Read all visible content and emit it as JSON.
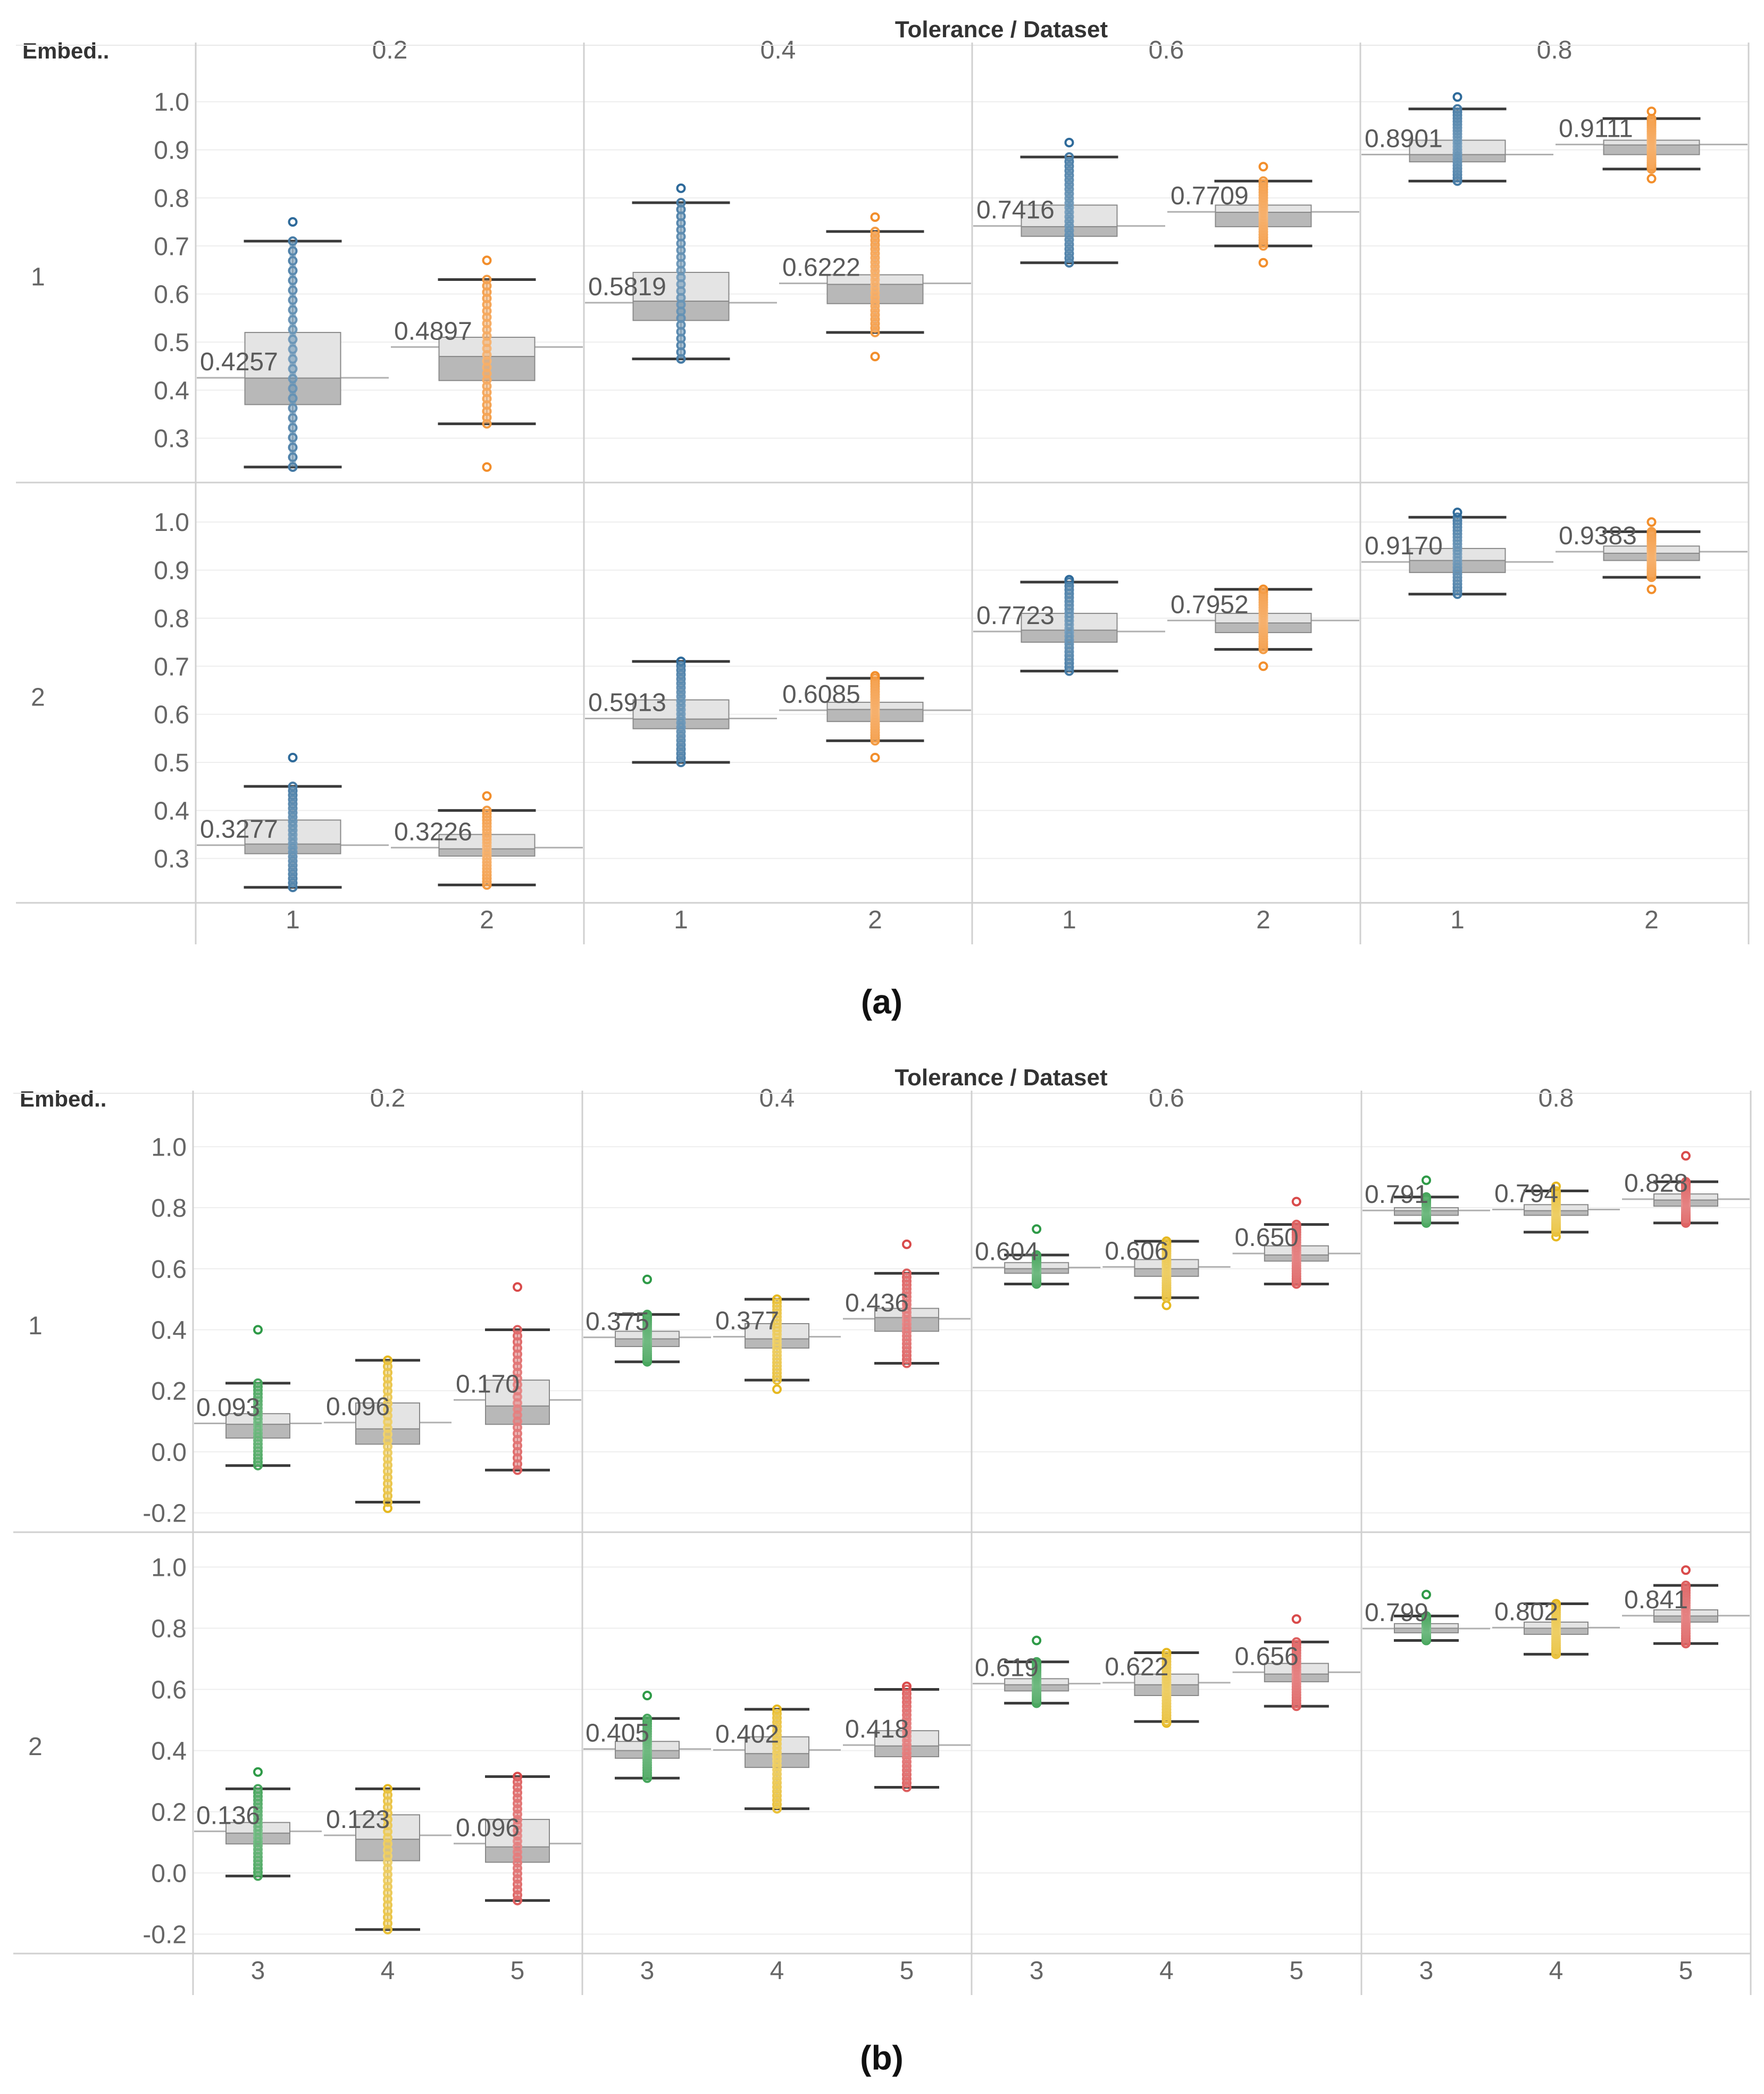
{
  "charts": [
    {
      "id": "a",
      "caption": "(a)",
      "header": "Tolerance / Dataset",
      "row_header": "Embed..",
      "tolerances": [
        "0.2",
        "0.4",
        "0.6",
        "0.8"
      ],
      "embeds": [
        "1",
        "2"
      ],
      "datasets": [
        "1",
        "2"
      ],
      "y_ticks": [
        "1.0",
        "0.9",
        "0.8",
        "0.7",
        "0.6",
        "0.5",
        "0.4",
        "0.3"
      ]
    },
    {
      "id": "b",
      "caption": "(b)",
      "header": "Tolerance / Dataset",
      "row_header": "Embed..",
      "tolerances": [
        "0.2",
        "0.4",
        "0.6",
        "0.8"
      ],
      "embeds": [
        "1",
        "2"
      ],
      "datasets": [
        "3",
        "4",
        "5"
      ],
      "y_ticks": [
        "1.0",
        "0.8",
        "0.6",
        "0.4",
        "0.2",
        "0.0",
        "-0.2"
      ]
    }
  ],
  "chart_data": [
    {
      "type": "box",
      "title": "(a)",
      "xlabel": "Tolerance / Dataset",
      "ylabel": "Embed..",
      "ylim": [
        0.21,
        1.07
      ],
      "y_ticks": [
        1.0,
        0.9,
        0.8,
        0.7,
        0.6,
        0.5,
        0.4,
        0.3
      ],
      "series_colors": {
        "1": "#2e6a9a",
        "2": "#f28e2b"
      },
      "panels": [
        {
          "tolerance": "0.2",
          "embed": "1",
          "boxes": [
            {
              "dataset": "1",
              "avg_label": "0.4257",
              "mean": 0.4257,
              "median": 0.425,
              "q1": 0.37,
              "q3": 0.52,
              "whisker_low": 0.24,
              "whisker_high": 0.71,
              "min": 0.24,
              "max": 0.75
            },
            {
              "dataset": "2",
              "avg_label": "0.4897",
              "mean": 0.4897,
              "median": 0.47,
              "q1": 0.42,
              "q3": 0.51,
              "whisker_low": 0.33,
              "whisker_high": 0.63,
              "min": 0.24,
              "max": 0.67
            }
          ]
        },
        {
          "tolerance": "0.4",
          "embed": "1",
          "boxes": [
            {
              "dataset": "1",
              "avg_label": "0.5819",
              "mean": 0.5819,
              "median": 0.585,
              "q1": 0.545,
              "q3": 0.645,
              "whisker_low": 0.465,
              "whisker_high": 0.79,
              "min": 0.465,
              "max": 0.82
            },
            {
              "dataset": "2",
              "avg_label": "0.6222",
              "mean": 0.6222,
              "median": 0.62,
              "q1": 0.58,
              "q3": 0.64,
              "whisker_low": 0.52,
              "whisker_high": 0.73,
              "min": 0.47,
              "max": 0.76
            }
          ]
        },
        {
          "tolerance": "0.6",
          "embed": "1",
          "boxes": [
            {
              "dataset": "1",
              "avg_label": "0.7416",
              "mean": 0.7416,
              "median": 0.74,
              "q1": 0.72,
              "q3": 0.785,
              "whisker_low": 0.665,
              "whisker_high": 0.885,
              "min": 0.665,
              "max": 0.915
            },
            {
              "dataset": "2",
              "avg_label": "0.7709",
              "mean": 0.7709,
              "median": 0.77,
              "q1": 0.74,
              "q3": 0.785,
              "whisker_low": 0.7,
              "whisker_high": 0.835,
              "min": 0.665,
              "max": 0.865
            }
          ]
        },
        {
          "tolerance": "0.8",
          "embed": "1",
          "boxes": [
            {
              "dataset": "1",
              "avg_label": "0.8901",
              "mean": 0.8901,
              "median": 0.89,
              "q1": 0.875,
              "q3": 0.92,
              "whisker_low": 0.835,
              "whisker_high": 0.985,
              "min": 0.835,
              "max": 1.01
            },
            {
              "dataset": "2",
              "avg_label": "0.9111",
              "mean": 0.9111,
              "median": 0.91,
              "q1": 0.89,
              "q3": 0.92,
              "whisker_low": 0.86,
              "whisker_high": 0.965,
              "min": 0.84,
              "max": 0.98
            }
          ]
        },
        {
          "tolerance": "0.2",
          "embed": "2",
          "boxes": [
            {
              "dataset": "1",
              "avg_label": "0.3277",
              "mean": 0.3277,
              "median": 0.33,
              "q1": 0.31,
              "q3": 0.38,
              "whisker_low": 0.24,
              "whisker_high": 0.45,
              "min": 0.24,
              "max": 0.51
            },
            {
              "dataset": "2",
              "avg_label": "0.3226",
              "mean": 0.3226,
              "median": 0.32,
              "q1": 0.305,
              "q3": 0.35,
              "whisker_low": 0.245,
              "whisker_high": 0.4,
              "min": 0.245,
              "max": 0.43
            }
          ]
        },
        {
          "tolerance": "0.4",
          "embed": "2",
          "boxes": [
            {
              "dataset": "1",
              "avg_label": "0.5913",
              "mean": 0.5913,
              "median": 0.59,
              "q1": 0.57,
              "q3": 0.63,
              "whisker_low": 0.5,
              "whisker_high": 0.71,
              "min": 0.5,
              "max": 0.71
            },
            {
              "dataset": "2",
              "avg_label": "0.6085",
              "mean": 0.6085,
              "median": 0.61,
              "q1": 0.585,
              "q3": 0.625,
              "whisker_low": 0.545,
              "whisker_high": 0.675,
              "min": 0.51,
              "max": 0.68
            }
          ]
        },
        {
          "tolerance": "0.6",
          "embed": "2",
          "boxes": [
            {
              "dataset": "1",
              "avg_label": "0.7723",
              "mean": 0.7723,
              "median": 0.775,
              "q1": 0.75,
              "q3": 0.81,
              "whisker_low": 0.69,
              "whisker_high": 0.875,
              "min": 0.69,
              "max": 0.88
            },
            {
              "dataset": "2",
              "avg_label": "0.7952",
              "mean": 0.7952,
              "median": 0.79,
              "q1": 0.77,
              "q3": 0.81,
              "whisker_low": 0.735,
              "whisker_high": 0.86,
              "min": 0.7,
              "max": 0.86
            }
          ]
        },
        {
          "tolerance": "0.8",
          "embed": "2",
          "boxes": [
            {
              "dataset": "1",
              "avg_label": "0.9170",
              "mean": 0.917,
              "median": 0.92,
              "q1": 0.895,
              "q3": 0.945,
              "whisker_low": 0.85,
              "whisker_high": 1.01,
              "min": 0.85,
              "max": 1.02
            },
            {
              "dataset": "2",
              "avg_label": "0.9383",
              "mean": 0.9383,
              "median": 0.935,
              "q1": 0.92,
              "q3": 0.95,
              "whisker_low": 0.885,
              "whisker_high": 0.98,
              "min": 0.86,
              "max": 1.0
            }
          ]
        }
      ]
    },
    {
      "type": "box",
      "title": "(b)",
      "xlabel": "Tolerance / Dataset",
      "ylabel": "Embed..",
      "ylim": [
        -0.26,
        1.1
      ],
      "y_ticks": [
        1.0,
        0.8,
        0.6,
        0.4,
        0.2,
        0.0,
        -0.2
      ],
      "series_colors": {
        "3": "#2e9a47",
        "4": "#e6b820",
        "5": "#d94b4b"
      },
      "panels": [
        {
          "tolerance": "0.2",
          "embed": "1",
          "boxes": [
            {
              "dataset": "3",
              "avg_label": "0.093",
              "mean": 0.093,
              "median": 0.09,
              "q1": 0.045,
              "q3": 0.125,
              "whisker_low": -0.045,
              "whisker_high": 0.225,
              "min": -0.045,
              "max": 0.4
            },
            {
              "dataset": "4",
              "avg_label": "0.096",
              "mean": 0.096,
              "median": 0.075,
              "q1": 0.025,
              "q3": 0.16,
              "whisker_low": -0.165,
              "whisker_high": 0.3,
              "min": -0.185,
              "max": 0.3
            },
            {
              "dataset": "5",
              "avg_label": "0.170",
              "mean": 0.17,
              "median": 0.15,
              "q1": 0.09,
              "q3": 0.235,
              "whisker_low": -0.06,
              "whisker_high": 0.4,
              "min": -0.06,
              "max": 0.54
            }
          ]
        },
        {
          "tolerance": "0.4",
          "embed": "1",
          "boxes": [
            {
              "dataset": "3",
              "avg_label": "0.375",
              "mean": 0.375,
              "median": 0.37,
              "q1": 0.345,
              "q3": 0.395,
              "whisker_low": 0.295,
              "whisker_high": 0.45,
              "min": 0.295,
              "max": 0.565
            },
            {
              "dataset": "4",
              "avg_label": "0.377",
              "mean": 0.377,
              "median": 0.37,
              "q1": 0.34,
              "q3": 0.42,
              "whisker_low": 0.235,
              "whisker_high": 0.5,
              "min": 0.205,
              "max": 0.5
            },
            {
              "dataset": "5",
              "avg_label": "0.436",
              "mean": 0.436,
              "median": 0.44,
              "q1": 0.395,
              "q3": 0.47,
              "whisker_low": 0.29,
              "whisker_high": 0.585,
              "min": 0.29,
              "max": 0.68
            }
          ]
        },
        {
          "tolerance": "0.6",
          "embed": "1",
          "boxes": [
            {
              "dataset": "3",
              "avg_label": "0.604",
              "mean": 0.604,
              "median": 0.6,
              "q1": 0.585,
              "q3": 0.62,
              "whisker_low": 0.55,
              "whisker_high": 0.645,
              "min": 0.55,
              "max": 0.73
            },
            {
              "dataset": "4",
              "avg_label": "0.606",
              "mean": 0.606,
              "median": 0.6,
              "q1": 0.575,
              "q3": 0.63,
              "whisker_low": 0.505,
              "whisker_high": 0.69,
              "min": 0.48,
              "max": 0.69
            },
            {
              "dataset": "5",
              "avg_label": "0.650",
              "mean": 0.65,
              "median": 0.645,
              "q1": 0.625,
              "q3": 0.675,
              "whisker_low": 0.55,
              "whisker_high": 0.745,
              "min": 0.55,
              "max": 0.82
            }
          ]
        },
        {
          "tolerance": "0.8",
          "embed": "1",
          "boxes": [
            {
              "dataset": "3",
              "avg_label": "0.791",
              "mean": 0.791,
              "median": 0.79,
              "q1": 0.775,
              "q3": 0.8,
              "whisker_low": 0.75,
              "whisker_high": 0.835,
              "min": 0.75,
              "max": 0.89
            },
            {
              "dataset": "4",
              "avg_label": "0.794",
              "mean": 0.794,
              "median": 0.79,
              "q1": 0.775,
              "q3": 0.81,
              "whisker_low": 0.72,
              "whisker_high": 0.855,
              "min": 0.705,
              "max": 0.87
            },
            {
              "dataset": "5",
              "avg_label": "0.828",
              "mean": 0.828,
              "median": 0.825,
              "q1": 0.805,
              "q3": 0.845,
              "whisker_low": 0.75,
              "whisker_high": 0.885,
              "min": 0.75,
              "max": 0.97
            }
          ]
        },
        {
          "tolerance": "0.2",
          "embed": "2",
          "boxes": [
            {
              "dataset": "3",
              "avg_label": "0.136",
              "mean": 0.136,
              "median": 0.13,
              "q1": 0.095,
              "q3": 0.165,
              "whisker_low": -0.01,
              "whisker_high": 0.275,
              "min": -0.01,
              "max": 0.33
            },
            {
              "dataset": "4",
              "avg_label": "0.123",
              "mean": 0.123,
              "median": 0.11,
              "q1": 0.04,
              "q3": 0.19,
              "whisker_low": -0.185,
              "whisker_high": 0.275,
              "min": -0.185,
              "max": 0.275
            },
            {
              "dataset": "5",
              "avg_label": "0.096",
              "mean": 0.096,
              "median": 0.085,
              "q1": 0.035,
              "q3": 0.175,
              "whisker_low": -0.09,
              "whisker_high": 0.315,
              "min": -0.09,
              "max": 0.315
            }
          ]
        },
        {
          "tolerance": "0.4",
          "embed": "2",
          "boxes": [
            {
              "dataset": "3",
              "avg_label": "0.405",
              "mean": 0.405,
              "median": 0.4,
              "q1": 0.375,
              "q3": 0.43,
              "whisker_low": 0.31,
              "whisker_high": 0.505,
              "min": 0.31,
              "max": 0.58
            },
            {
              "dataset": "4",
              "avg_label": "0.402",
              "mean": 0.402,
              "median": 0.39,
              "q1": 0.345,
              "q3": 0.445,
              "whisker_low": 0.21,
              "whisker_high": 0.535,
              "min": 0.21,
              "max": 0.535
            },
            {
              "dataset": "5",
              "avg_label": "0.418",
              "mean": 0.418,
              "median": 0.415,
              "q1": 0.38,
              "q3": 0.465,
              "whisker_low": 0.28,
              "whisker_high": 0.6,
              "min": 0.28,
              "max": 0.61
            }
          ]
        },
        {
          "tolerance": "0.6",
          "embed": "2",
          "boxes": [
            {
              "dataset": "3",
              "avg_label": "0.619",
              "mean": 0.619,
              "median": 0.615,
              "q1": 0.595,
              "q3": 0.635,
              "whisker_low": 0.555,
              "whisker_high": 0.69,
              "min": 0.555,
              "max": 0.76
            },
            {
              "dataset": "4",
              "avg_label": "0.622",
              "mean": 0.622,
              "median": 0.615,
              "q1": 0.58,
              "q3": 0.65,
              "whisker_low": 0.495,
              "whisker_high": 0.72,
              "min": 0.49,
              "max": 0.72
            },
            {
              "dataset": "5",
              "avg_label": "0.656",
              "mean": 0.656,
              "median": 0.65,
              "q1": 0.625,
              "q3": 0.685,
              "whisker_low": 0.545,
              "whisker_high": 0.755,
              "min": 0.545,
              "max": 0.83
            }
          ]
        },
        {
          "tolerance": "0.8",
          "embed": "2",
          "boxes": [
            {
              "dataset": "3",
              "avg_label": "0.799",
              "mean": 0.799,
              "median": 0.8,
              "q1": 0.785,
              "q3": 0.815,
              "whisker_low": 0.76,
              "whisker_high": 0.84,
              "min": 0.76,
              "max": 0.91
            },
            {
              "dataset": "4",
              "avg_label": "0.802",
              "mean": 0.802,
              "median": 0.8,
              "q1": 0.78,
              "q3": 0.82,
              "whisker_low": 0.715,
              "whisker_high": 0.88,
              "min": 0.715,
              "max": 0.88
            },
            {
              "dataset": "5",
              "avg_label": "0.841",
              "mean": 0.841,
              "median": 0.84,
              "q1": 0.82,
              "q3": 0.86,
              "whisker_low": 0.75,
              "whisker_high": 0.94,
              "min": 0.75,
              "max": 0.99
            }
          ]
        }
      ]
    }
  ]
}
